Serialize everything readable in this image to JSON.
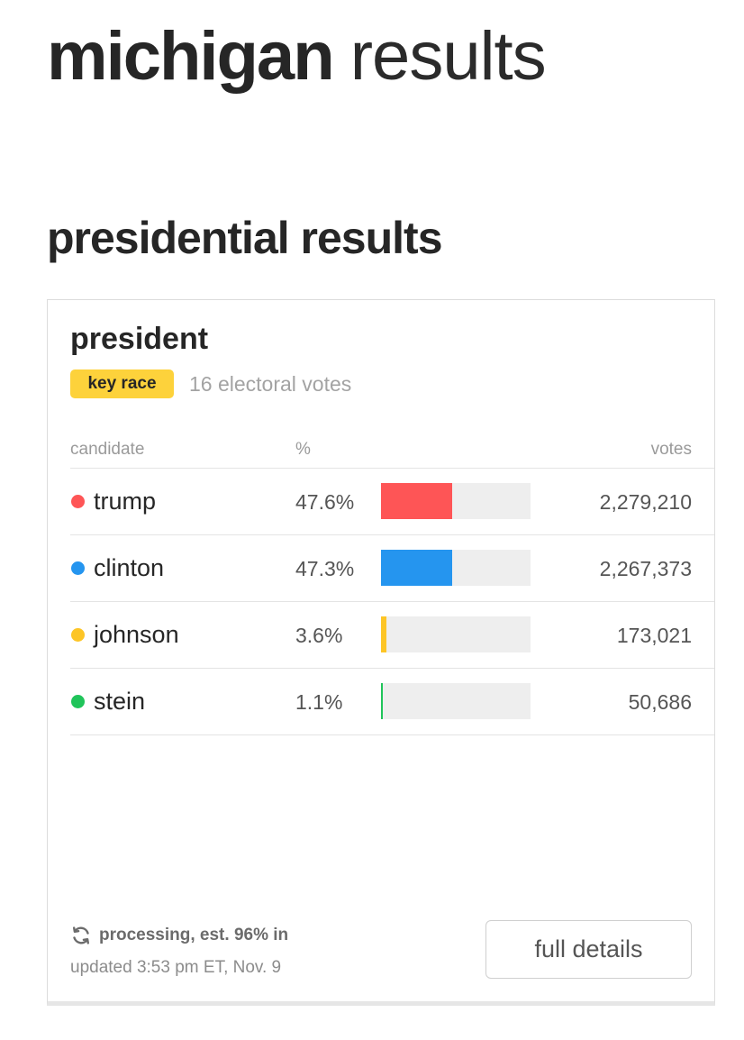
{
  "page": {
    "title_state": "michigan",
    "title_suffix": "results"
  },
  "section": {
    "title": "presidential results"
  },
  "race": {
    "title": "president",
    "badge": "key race",
    "electoral_votes": "16 electoral votes",
    "columns": {
      "candidate": "candidate",
      "percent": "%",
      "votes": "votes"
    },
    "candidates": [
      {
        "name": "trump",
        "percent_label": "47.6%",
        "percent": 47.6,
        "votes": "2,279,210",
        "color": "#fe5556"
      },
      {
        "name": "clinton",
        "percent_label": "47.3%",
        "percent": 47.3,
        "votes": "2,267,373",
        "color": "#2595ef"
      },
      {
        "name": "johnson",
        "percent_label": "3.6%",
        "percent": 3.6,
        "votes": "173,021",
        "color": "#fdc526"
      },
      {
        "name": "stein",
        "percent_label": "1.1%",
        "percent": 1.1,
        "votes": "50,686",
        "color": "#20c45a"
      }
    ],
    "status": "processing, est. 96% in",
    "updated": "updated 3:53 pm ET, Nov. 9",
    "details_label": "full details"
  },
  "icons": {
    "status": "refresh-icon"
  }
}
